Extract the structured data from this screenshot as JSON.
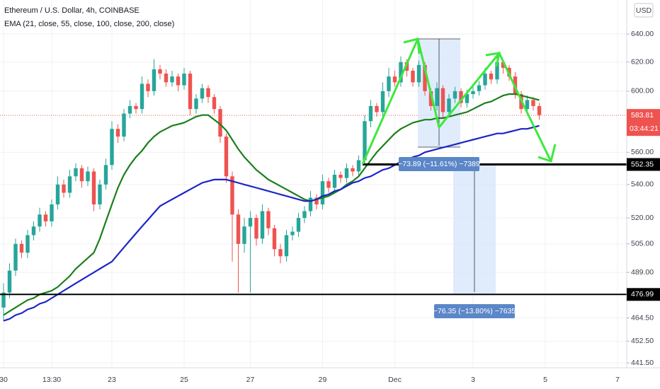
{
  "chart_data": {
    "type": "candlestick",
    "title": "Ethereum / U.S. Dollar, 4h, COINBASE",
    "subtitle": "EMA (21, close, 55, close, 100, close, 200, close)",
    "currency": "USD",
    "log_scale": true,
    "grid": true,
    "up_color": "#26a69a",
    "down_color": "#ef5350",
    "ylim": [
      439.1,
      665
    ],
    "yticks": [
      {
        "value": 441.5,
        "label": "441.50"
      },
      {
        "value": 452.5,
        "label": "452.50"
      },
      {
        "value": 464.5,
        "label": "464.50"
      },
      {
        "value": 489,
        "label": "489.00"
      },
      {
        "value": 505,
        "label": "505.00"
      },
      {
        "value": 520,
        "label": "520.00"
      },
      {
        "value": 540,
        "label": "540.00"
      },
      {
        "value": 560,
        "label": "560.00"
      },
      {
        "value": 600,
        "label": "600.00"
      },
      {
        "value": 620,
        "label": "620.00"
      },
      {
        "value": 640,
        "label": "640.00"
      }
    ],
    "categories": [
      "30",
      null,
      null,
      null,
      null,
      null,
      null,
      null,
      "13:30",
      null,
      null,
      null,
      null,
      null,
      null,
      null,
      null,
      null,
      "23",
      null,
      null,
      null,
      null,
      null,
      null,
      null,
      null,
      null,
      null,
      null,
      "25",
      null,
      null,
      null,
      null,
      null,
      null,
      null,
      null,
      null,
      null,
      "27",
      null,
      null,
      null,
      null,
      null,
      null,
      null,
      null,
      null,
      null,
      null,
      "29",
      null,
      null,
      null,
      null,
      null,
      null,
      null,
      null,
      null,
      null,
      null,
      "Dec",
      null,
      null,
      null,
      null,
      null,
      null,
      null,
      null,
      null,
      null,
      null,
      null,
      "3",
      null,
      null,
      null,
      null,
      null,
      null,
      null,
      null,
      null,
      null,
      null,
      "5",
      null,
      null,
      null,
      null,
      null,
      null,
      null,
      null,
      null,
      null,
      null,
      "7",
      null
    ],
    "open": [
      470,
      478,
      490,
      505,
      500,
      510,
      515,
      522,
      518,
      528,
      540,
      535,
      545,
      550,
      542,
      548,
      528,
      540,
      552,
      575,
      570,
      585,
      590,
      588,
      605,
      600,
      615,
      612,
      606,
      610,
      604,
      612,
      588,
      595,
      602,
      596,
      588,
      570,
      545,
      522,
      505,
      515,
      520,
      508,
      524,
      514,
      502,
      498,
      510,
      512,
      520,
      524,
      532,
      528,
      542,
      538,
      546,
      544,
      550,
      548,
      555,
      580,
      590,
      586,
      600,
      610,
      606,
      620,
      614,
      606,
      618,
      600,
      590,
      602,
      586,
      595,
      600,
      592,
      598,
      600,
      604,
      612,
      608,
      620,
      616,
      610,
      598,
      588,
      594,
      590,
      null,
      null,
      null,
      null,
      null,
      null,
      null,
      null,
      null,
      null,
      null,
      null,
      null,
      null
    ],
    "high": [
      483,
      494,
      508,
      507,
      513,
      518,
      526,
      524,
      531,
      545,
      543,
      549,
      553,
      552,
      551,
      550,
      543,
      556,
      580,
      578,
      588,
      594,
      592,
      610,
      608,
      622,
      618,
      615,
      614,
      612,
      616,
      614,
      598,
      605,
      604,
      598,
      590,
      572,
      548,
      525,
      520,
      524,
      522,
      528,
      526,
      516,
      505,
      513,
      515,
      523,
      527,
      536,
      534,
      546,
      544,
      549,
      548,
      553,
      552,
      558,
      584,
      594,
      592,
      606,
      616,
      614,
      624,
      622,
      616,
      621,
      620,
      602,
      606,
      604,
      598,
      603,
      602,
      601,
      603,
      607,
      616,
      614,
      624,
      622,
      618,
      613,
      600,
      597,
      596,
      592,
      null,
      null,
      null,
      null,
      null,
      null,
      null,
      null,
      null,
      null,
      null,
      null,
      null,
      null
    ],
    "low": [
      463,
      475,
      487,
      497,
      497,
      507,
      512,
      515,
      515,
      525,
      532,
      532,
      542,
      538,
      539,
      524,
      525,
      537,
      549,
      566,
      567,
      582,
      585,
      585,
      596,
      597,
      608,
      603,
      603,
      600,
      601,
      584,
      585,
      592,
      592,
      585,
      566,
      541,
      495,
      478,
      500,
      478,
      504,
      505,
      510,
      498,
      494,
      495,
      507,
      509,
      517,
      521,
      525,
      525,
      535,
      535,
      541,
      541,
      545,
      545,
      552,
      576,
      583,
      583,
      596,
      603,
      603,
      610,
      603,
      603,
      597,
      587,
      587,
      582,
      583,
      592,
      589,
      589,
      595,
      597,
      601,
      605,
      605,
      612,
      607,
      595,
      585,
      585,
      587,
      581,
      null,
      null,
      null,
      null,
      null,
      null,
      null,
      null,
      null,
      null,
      null,
      null,
      null,
      null
    ],
    "close": [
      478,
      490,
      505,
      500,
      510,
      515,
      522,
      518,
      528,
      540,
      535,
      545,
      550,
      542,
      548,
      528,
      540,
      552,
      575,
      570,
      585,
      590,
      588,
      605,
      600,
      615,
      612,
      606,
      610,
      604,
      612,
      588,
      595,
      602,
      596,
      588,
      570,
      545,
      522,
      505,
      515,
      520,
      508,
      524,
      514,
      502,
      498,
      510,
      512,
      520,
      524,
      532,
      528,
      542,
      538,
      546,
      544,
      550,
      548,
      555,
      580,
      590,
      586,
      600,
      610,
      606,
      620,
      614,
      606,
      618,
      600,
      590,
      602,
      586,
      595,
      600,
      592,
      598,
      600,
      604,
      612,
      608,
      620,
      616,
      610,
      598,
      588,
      594,
      590,
      584,
      null,
      null,
      null,
      null,
      null,
      null,
      null,
      null,
      null,
      null,
      null,
      null,
      null,
      null
    ],
    "series": [
      {
        "color": "#1b7f1b",
        "values": [
          466,
          468,
          470,
          472,
          474,
          475,
          477,
          478,
          479,
          481,
          484,
          487,
          491,
          494,
          497,
          500,
          508,
          518,
          528,
          538,
          546,
          552,
          557,
          561,
          566,
          570,
          573,
          575,
          577,
          578,
          579,
          581,
          583,
          584,
          584,
          581,
          578,
          574,
          568,
          562,
          557,
          553,
          549,
          546,
          543,
          541,
          539,
          537,
          535,
          533,
          531,
          530,
          531,
          532,
          533,
          535,
          537,
          540,
          542,
          545,
          550,
          555,
          560,
          564,
          568,
          572,
          575,
          577,
          579,
          580,
          581,
          581,
          582,
          582,
          583,
          584,
          585,
          586,
          588,
          590,
          592,
          593,
          595,
          597,
          598,
          598,
          597,
          596,
          595,
          594,
          null,
          null,
          null,
          null,
          null,
          null,
          null,
          null,
          null,
          null,
          null,
          null,
          null,
          null
        ]
      },
      {
        "color": "#1c24c8",
        "values": [
          463,
          464,
          466,
          467,
          469,
          470,
          472,
          473,
          475,
          477,
          479,
          481,
          483,
          485,
          487,
          489,
          491,
          493,
          495,
          499,
          503,
          507,
          511,
          515,
          519,
          523,
          527,
          529,
          531,
          533,
          535,
          537,
          539,
          541,
          542,
          543,
          543,
          543,
          542,
          541,
          540,
          539,
          538,
          537,
          536,
          535,
          534,
          533,
          532,
          531,
          530,
          530,
          531,
          533,
          534,
          536,
          537,
          539,
          541,
          542,
          544,
          545,
          547,
          549,
          550,
          552,
          554,
          555,
          557,
          558,
          560,
          561,
          562,
          563,
          564,
          565,
          566,
          567,
          568,
          569,
          570,
          571,
          572,
          572,
          573,
          574,
          575,
          575,
          576,
          577,
          null,
          null,
          null,
          null,
          null,
          null,
          null,
          null,
          null,
          null,
          null,
          null,
          null,
          null
        ]
      }
    ],
    "last_price": {
      "value": 583.81,
      "label": "583.81"
    },
    "countdown": "03:44:21",
    "levels": [
      {
        "value": 552.35,
        "label": "552.35"
      },
      {
        "value": 476.99,
        "label": "476.99"
      }
    ],
    "annotations": [
      {
        "text": "−73.89 (−11.61%) −7389"
      },
      {
        "text": "−76.35 (−13.80%) −7635"
      }
    ]
  }
}
